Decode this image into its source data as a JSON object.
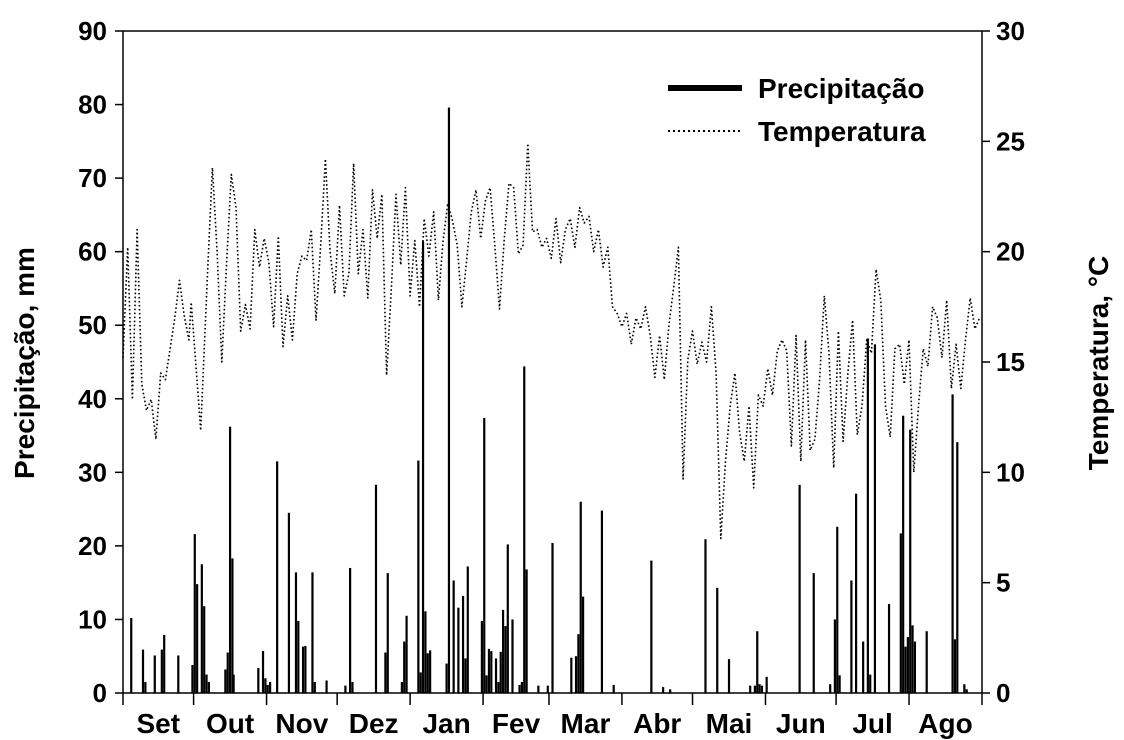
{
  "chart_data": {
    "type": "bar",
    "ylabel_left": "Precipitação, mm",
    "ylabel_right": "Temperatura, °C",
    "ylim_left": [
      0,
      90
    ],
    "ylim_right": [
      0,
      30
    ],
    "yticks_left": [
      "0",
      "10",
      "20",
      "30",
      "40",
      "50",
      "60",
      "70",
      "80",
      "90"
    ],
    "yticks_right": [
      "0",
      "5",
      "10",
      "15",
      "20",
      "25",
      "30"
    ],
    "months": [
      "Set",
      "Out",
      "Nov",
      "Dez",
      "Jan",
      "Fev",
      "Mar",
      "Abr",
      "Mai",
      "Jun",
      "Jul",
      "Ago"
    ],
    "month_lengths": [
      30,
      31,
      30,
      31,
      31,
      28,
      31,
      30,
      31,
      30,
      31,
      31
    ],
    "legend": {
      "position": "top-right",
      "entries": [
        "Precipitação",
        "Temperatura"
      ]
    },
    "series": [
      {
        "name": "Precipitação",
        "type": "bar",
        "axis": "left",
        "points": [
          [
            3,
            10.2
          ],
          [
            8,
            5.9
          ],
          [
            9,
            1.5
          ],
          [
            13,
            5.1
          ],
          [
            16,
            5.9
          ],
          [
            17,
            7.9
          ],
          [
            23,
            5.1
          ],
          [
            29,
            3.8
          ],
          [
            30,
            21.6
          ],
          [
            31,
            14.8
          ],
          [
            33,
            17.5
          ],
          [
            34,
            11.8
          ],
          [
            35,
            2.5
          ],
          [
            36,
            1.5
          ],
          [
            43,
            3.2
          ],
          [
            44,
            5.5
          ],
          [
            45,
            36.2
          ],
          [
            46,
            18.3
          ],
          [
            46.5,
            2.5
          ],
          [
            57,
            3.4
          ],
          [
            59,
            5.7
          ],
          [
            60,
            2.0
          ],
          [
            61,
            1.1
          ],
          [
            62,
            1.5
          ],
          [
            65,
            31.5
          ],
          [
            70,
            24.5
          ],
          [
            73,
            16.4
          ],
          [
            74,
            9.8
          ],
          [
            76,
            6.3
          ],
          [
            77,
            6.4
          ],
          [
            80,
            16.4
          ],
          [
            81,
            1.5
          ],
          [
            86,
            1.7
          ],
          [
            94,
            1.0
          ],
          [
            96,
            17.0
          ],
          [
            97,
            1.5
          ],
          [
            107,
            28.3
          ],
          [
            111,
            5.5
          ],
          [
            112,
            16.3
          ],
          [
            118,
            1.5
          ],
          [
            119,
            7.0
          ],
          [
            120,
            10.5
          ],
          [
            125,
            31.6
          ],
          [
            126,
            2.8
          ],
          [
            127,
            61.4
          ],
          [
            128,
            11.1
          ],
          [
            129,
            5.4
          ],
          [
            130,
            5.8
          ],
          [
            137,
            4.0
          ],
          [
            138,
            79.6
          ],
          [
            140,
            15.3
          ],
          [
            142,
            11.6
          ],
          [
            144,
            13.2
          ],
          [
            145,
            4.7
          ],
          [
            146,
            17.2
          ],
          [
            152,
            9.8
          ],
          [
            153,
            37.4
          ],
          [
            154,
            2.4
          ],
          [
            155,
            6.0
          ],
          [
            156,
            5.7
          ],
          [
            158,
            4.7
          ],
          [
            159,
            1.5
          ],
          [
            160,
            5.6
          ],
          [
            161,
            11.3
          ],
          [
            162,
            9.1
          ],
          [
            163,
            20.2
          ],
          [
            165,
            10.0
          ],
          [
            168,
            1.1
          ],
          [
            169,
            1.5
          ],
          [
            170,
            44.4
          ],
          [
            171,
            16.8
          ],
          [
            176,
            1.0
          ],
          [
            180,
            1.0
          ],
          [
            182,
            20.4
          ],
          [
            190,
            4.8
          ],
          [
            192,
            5.0
          ],
          [
            193,
            8.0
          ],
          [
            194,
            26.0
          ],
          [
            195,
            13.1
          ],
          [
            203,
            24.8
          ],
          [
            208,
            1.1
          ],
          [
            224,
            18.0
          ],
          [
            229,
            0.8
          ],
          [
            232,
            0.5
          ],
          [
            247,
            20.9
          ],
          [
            252,
            14.3
          ],
          [
            257,
            4.6
          ],
          [
            266,
            1.0
          ],
          [
            268,
            1.0
          ],
          [
            269,
            8.4
          ],
          [
            270,
            1.2
          ],
          [
            271,
            1.0
          ],
          [
            273,
            2.2
          ],
          [
            287,
            28.3
          ],
          [
            293,
            16.3
          ],
          [
            300,
            1.2
          ],
          [
            302,
            10.0
          ],
          [
            303,
            22.6
          ],
          [
            304,
            2.4
          ],
          [
            309,
            15.3
          ],
          [
            311,
            27.1
          ],
          [
            314,
            7.0
          ],
          [
            316,
            48.2
          ],
          [
            317,
            2.5
          ],
          [
            319,
            47.4
          ],
          [
            325,
            12.1
          ],
          [
            330,
            21.7
          ],
          [
            331,
            37.7
          ],
          [
            332,
            6.3
          ],
          [
            333,
            7.6
          ],
          [
            334,
            35.8
          ],
          [
            335,
            9.2
          ],
          [
            336,
            7.0
          ],
          [
            341,
            8.4
          ],
          [
            352,
            40.6
          ],
          [
            353,
            7.3
          ],
          [
            354,
            34.1
          ],
          [
            357,
            1.2
          ],
          [
            358,
            0.5
          ]
        ]
      },
      {
        "name": "Temperatura",
        "type": "line",
        "style": "dotted",
        "axis": "right",
        "points": [
          [
            0,
            15.2
          ],
          [
            2,
            20.2
          ],
          [
            4,
            13.3
          ],
          [
            6,
            21.0
          ],
          [
            8,
            14.0
          ],
          [
            10,
            12.8
          ],
          [
            12,
            13.3
          ],
          [
            14,
            11.5
          ],
          [
            16,
            14.5
          ],
          [
            18,
            14.2
          ],
          [
            20,
            15.6
          ],
          [
            22,
            17.0
          ],
          [
            24,
            18.7
          ],
          [
            26,
            17.1
          ],
          [
            28,
            16.0
          ],
          [
            29,
            17.7
          ],
          [
            31,
            14.8
          ],
          [
            33,
            11.9
          ],
          [
            36,
            19.2
          ],
          [
            38,
            23.8
          ],
          [
            40,
            20.0
          ],
          [
            42,
            15.0
          ],
          [
            44,
            19.5
          ],
          [
            46,
            23.5
          ],
          [
            48,
            22.0
          ],
          [
            50,
            16.4
          ],
          [
            52,
            17.6
          ],
          [
            54,
            16.5
          ],
          [
            56,
            21.0
          ],
          [
            58,
            19.3
          ],
          [
            60,
            20.6
          ],
          [
            62,
            19.5
          ],
          [
            64,
            16.6
          ],
          [
            66,
            20.7
          ],
          [
            68,
            15.7
          ],
          [
            70,
            18.0
          ],
          [
            72,
            16.0
          ],
          [
            74,
            19.0
          ],
          [
            76,
            19.8
          ],
          [
            78,
            19.6
          ],
          [
            80,
            21.0
          ],
          [
            82,
            16.9
          ],
          [
            84,
            20.3
          ],
          [
            86,
            24.2
          ],
          [
            88,
            20.0
          ],
          [
            90,
            18.1
          ],
          [
            92,
            22.1
          ],
          [
            94,
            18.0
          ],
          [
            96,
            19.0
          ],
          [
            98,
            24.0
          ],
          [
            100,
            19.0
          ],
          [
            102,
            21.0
          ],
          [
            104,
            17.9
          ],
          [
            106,
            22.8
          ],
          [
            108,
            20.6
          ],
          [
            110,
            22.6
          ],
          [
            112,
            14.4
          ],
          [
            114,
            18.3
          ],
          [
            116,
            22.6
          ],
          [
            118,
            19.4
          ],
          [
            120,
            22.9
          ],
          [
            122,
            18.0
          ],
          [
            124,
            20.5
          ],
          [
            126,
            17.5
          ],
          [
            128,
            21.5
          ],
          [
            130,
            19.8
          ],
          [
            132,
            21.8
          ],
          [
            134,
            17.8
          ],
          [
            136,
            20.5
          ],
          [
            138,
            22.2
          ],
          [
            140,
            21.4
          ],
          [
            142,
            20.3
          ],
          [
            144,
            17.5
          ],
          [
            146,
            19.6
          ],
          [
            148,
            21.8
          ],
          [
            150,
            22.8
          ],
          [
            152,
            20.6
          ],
          [
            154,
            22.3
          ],
          [
            156,
            22.9
          ],
          [
            158,
            20.3
          ],
          [
            160,
            17.4
          ],
          [
            162,
            20.6
          ],
          [
            164,
            23.1
          ],
          [
            166,
            22.9
          ],
          [
            168,
            19.9
          ],
          [
            170,
            20.3
          ],
          [
            172,
            24.9
          ],
          [
            174,
            20.9
          ],
          [
            176,
            21.0
          ],
          [
            178,
            20.2
          ],
          [
            180,
            20.6
          ],
          [
            182,
            19.7
          ],
          [
            184,
            21.5
          ],
          [
            186,
            19.5
          ],
          [
            188,
            21.0
          ],
          [
            190,
            21.5
          ],
          [
            192,
            20.2
          ],
          [
            194,
            22.0
          ],
          [
            196,
            21.3
          ],
          [
            198,
            21.6
          ],
          [
            200,
            20.0
          ],
          [
            202,
            21.0
          ],
          [
            204,
            19.3
          ],
          [
            206,
            20.2
          ],
          [
            208,
            17.5
          ],
          [
            210,
            17.2
          ],
          [
            212,
            16.6
          ],
          [
            214,
            17.2
          ],
          [
            216,
            15.8
          ],
          [
            218,
            17.0
          ],
          [
            220,
            16.5
          ],
          [
            222,
            17.5
          ],
          [
            224,
            16.2
          ],
          [
            226,
            14.3
          ],
          [
            228,
            16.2
          ],
          [
            230,
            14.2
          ],
          [
            232,
            16.7
          ],
          [
            234,
            18.4
          ],
          [
            236,
            20.2
          ],
          [
            238,
            9.7
          ],
          [
            240,
            15.1
          ],
          [
            242,
            16.4
          ],
          [
            244,
            14.9
          ],
          [
            246,
            15.9
          ],
          [
            248,
            15.0
          ],
          [
            250,
            17.5
          ],
          [
            252,
            14.5
          ],
          [
            254,
            7.0
          ],
          [
            256,
            10.5
          ],
          [
            258,
            13.0
          ],
          [
            260,
            14.5
          ],
          [
            262,
            11.8
          ],
          [
            264,
            10.5
          ],
          [
            266,
            13.0
          ],
          [
            268,
            9.3
          ],
          [
            270,
            13.5
          ],
          [
            272,
            13.0
          ],
          [
            274,
            14.7
          ],
          [
            276,
            13.5
          ],
          [
            278,
            15.5
          ],
          [
            280,
            16.0
          ],
          [
            282,
            15.5
          ],
          [
            284,
            11.2
          ],
          [
            286,
            16.2
          ],
          [
            288,
            10.5
          ],
          [
            290,
            16.0
          ],
          [
            292,
            11.0
          ],
          [
            294,
            11.5
          ],
          [
            296,
            14.2
          ],
          [
            298,
            18.0
          ],
          [
            300,
            15.4
          ],
          [
            302,
            10.2
          ],
          [
            304,
            16.4
          ],
          [
            306,
            11.4
          ],
          [
            308,
            14.5
          ],
          [
            310,
            16.9
          ],
          [
            312,
            11.7
          ],
          [
            314,
            13.0
          ],
          [
            316,
            16.0
          ],
          [
            318,
            15.4
          ],
          [
            320,
            19.2
          ],
          [
            322,
            17.8
          ],
          [
            324,
            13.0
          ],
          [
            326,
            11.6
          ],
          [
            328,
            15.6
          ],
          [
            330,
            15.8
          ],
          [
            332,
            14.0
          ],
          [
            334,
            16.0
          ],
          [
            336,
            10.0
          ],
          [
            338,
            13.0
          ],
          [
            340,
            15.6
          ],
          [
            342,
            14.8
          ],
          [
            344,
            17.5
          ],
          [
            346,
            17.0
          ],
          [
            348,
            15.2
          ],
          [
            350,
            17.8
          ],
          [
            352,
            13.8
          ],
          [
            354,
            15.8
          ],
          [
            356,
            13.8
          ],
          [
            358,
            16.0
          ],
          [
            360,
            17.9
          ],
          [
            362,
            16.5
          ],
          [
            364,
            17.0
          ]
        ]
      }
    ]
  }
}
